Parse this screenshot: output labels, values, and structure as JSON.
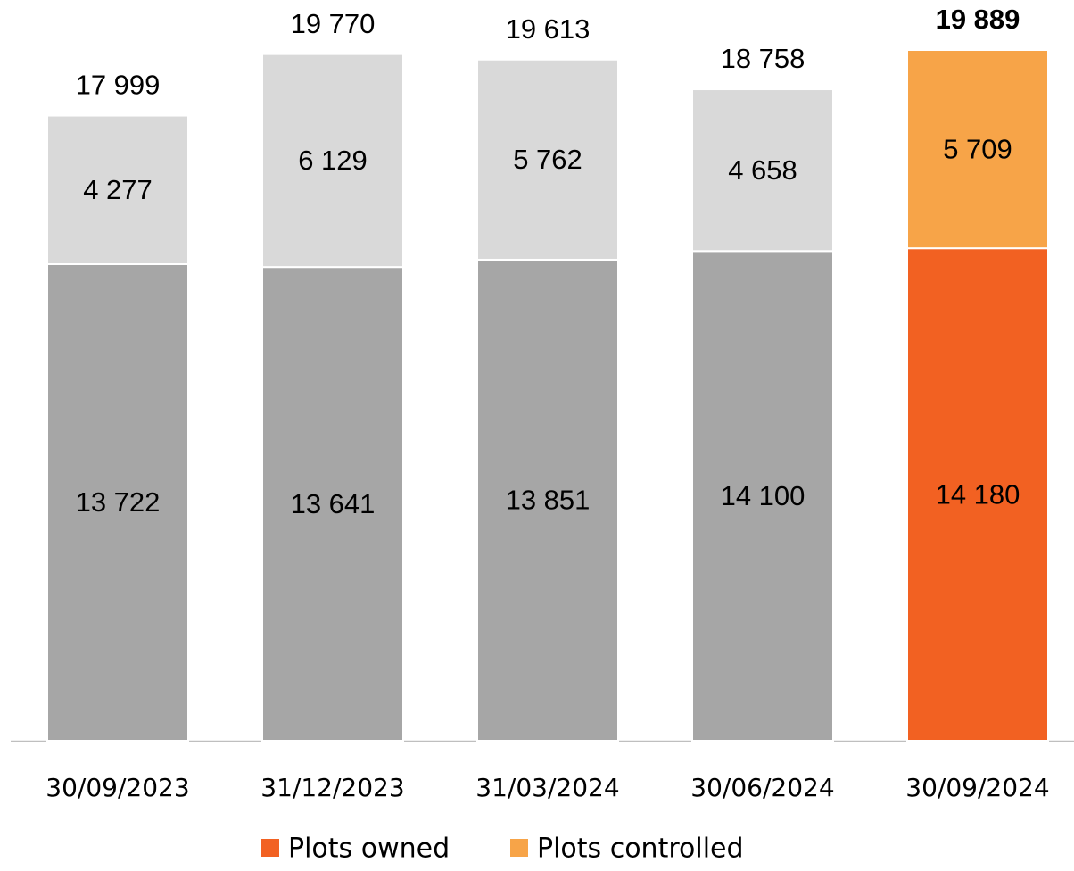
{
  "chart_data": {
    "type": "stacked_bar",
    "categories": [
      "30/09/2023",
      "31/12/2023",
      "31/03/2024",
      "30/06/2024",
      "30/09/2024"
    ],
    "series": [
      {
        "name": "Plots owned",
        "color": "#f26122",
        "colors": [
          "#a6a6a6",
          "#a6a6a6",
          "#a6a6a6",
          "#a6a6a6",
          "#f26122"
        ],
        "values": [
          13722,
          13641,
          13851,
          14100,
          14180
        ],
        "value_labels": [
          "13 722",
          "13 641",
          "13 851",
          "14 100",
          "14 180"
        ]
      },
      {
        "name": "Plots controlled",
        "color": "#f7a448",
        "colors": [
          "#d9d9d9",
          "#d9d9d9",
          "#d9d9d9",
          "#d9d9d9",
          "#f7a448"
        ],
        "values": [
          4277,
          6129,
          5762,
          4658,
          5709
        ],
        "value_labels": [
          "4 277",
          "6 129",
          "5 762",
          "4 658",
          "5 709"
        ]
      }
    ],
    "totals": [
      17999,
      19770,
      19613,
      18758,
      19889
    ],
    "total_labels": [
      "17 999",
      "19 770",
      "19 613",
      "18 758",
      "19 889"
    ],
    "bold_total_index": 4,
    "legend": "bottom"
  }
}
